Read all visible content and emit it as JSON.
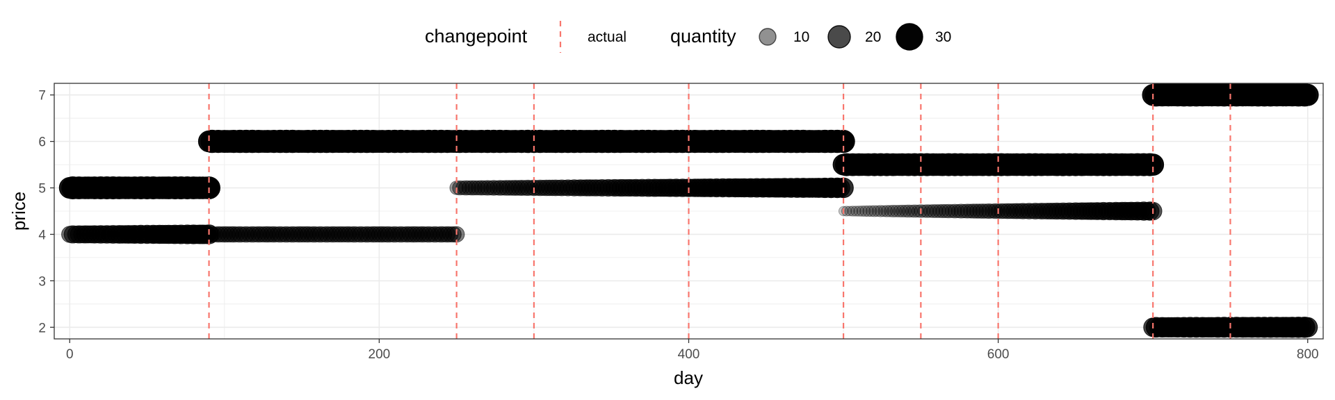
{
  "chart_data": {
    "type": "scatter",
    "xlabel": "day",
    "ylabel": "price",
    "xlim": [
      -10,
      810
    ],
    "ylim": [
      1.75,
      7.25
    ],
    "x_ticks": [
      0,
      200,
      400,
      600,
      800
    ],
    "y_ticks": [
      2,
      3,
      4,
      5,
      6,
      7
    ],
    "x_tick_labels": [
      "0",
      "200",
      "400",
      "600",
      "800"
    ],
    "y_tick_labels": [
      "2",
      "3",
      "4",
      "5",
      "6",
      "7"
    ],
    "grid": true,
    "legend_position": "top",
    "legend": {
      "changepoint_title": "changepoint",
      "changepoint_label": "actual",
      "size_title": "quantity",
      "size_breaks": [
        10,
        20,
        30
      ],
      "size_labels": [
        "10",
        "20",
        "30"
      ]
    },
    "changepoints": [
      90,
      250,
      300,
      400,
      500,
      550,
      600,
      700,
      750
    ],
    "segments": [
      {
        "day_start": 0,
        "day_end": 90,
        "price": 5,
        "quantity": [
          32,
          32
        ]
      },
      {
        "day_start": 0,
        "day_end": 90,
        "price": 4,
        "quantity": [
          17,
          22
        ]
      },
      {
        "day_start": 90,
        "day_end": 250,
        "price": 6,
        "quantity": [
          33,
          33
        ]
      },
      {
        "day_start": 90,
        "day_end": 250,
        "price": 4,
        "quantity": [
          13,
          13
        ]
      },
      {
        "day_start": 250,
        "day_end": 500,
        "price": 6,
        "quantity": [
          33,
          33
        ]
      },
      {
        "day_start": 250,
        "day_end": 500,
        "price": 5,
        "quantity": [
          10,
          24
        ]
      },
      {
        "day_start": 500,
        "day_end": 700,
        "price": 5.5,
        "quantity": [
          32,
          32
        ]
      },
      {
        "day_start": 500,
        "day_end": 700,
        "price": 4.5,
        "quantity": [
          3,
          20
        ]
      },
      {
        "day_start": 700,
        "day_end": 800,
        "price": 7,
        "quantity": [
          33,
          33
        ]
      },
      {
        "day_start": 700,
        "day_end": 800,
        "price": 2,
        "quantity": [
          24,
          26
        ]
      }
    ],
    "colors": {
      "points": "#000000",
      "changepoint_line": "#F8766D",
      "grid": "#EBEBEB",
      "border": "#333333"
    }
  }
}
